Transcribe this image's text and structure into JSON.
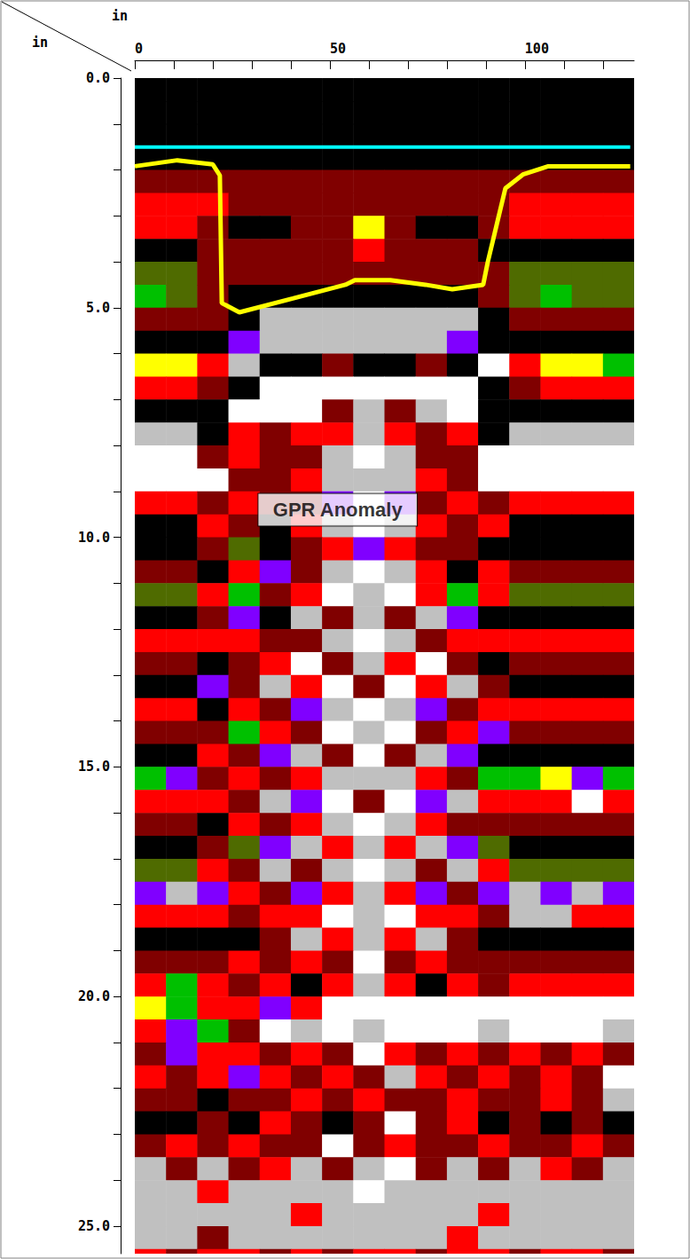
{
  "chart_data": {
    "type": "radargram",
    "x_label": "in",
    "y_label": "in",
    "xlim": [
      0,
      128
    ],
    "xticks": [
      0,
      50,
      100
    ],
    "ylim": [
      0,
      25.6
    ],
    "yticks": [
      {
        "value": 0,
        "label": "0.0"
      },
      {
        "value": 5,
        "label": "5.0"
      },
      {
        "value": 10,
        "label": "10.0"
      },
      {
        "value": 15,
        "label": "15.0"
      },
      {
        "value": 20,
        "label": "20.0"
      },
      {
        "value": 25,
        "label": "25.0"
      }
    ],
    "colors": [
      "#000000",
      "#800000",
      "#ff0000",
      "#ffff00",
      "#00c000",
      "#4f6b00",
      "#8000ff",
      "#ffffff",
      "#c0c0c0"
    ],
    "x_edges": [
      0,
      8,
      16,
      24,
      32,
      40,
      48,
      56,
      64,
      72,
      80,
      88,
      96,
      104,
      112,
      120,
      128
    ],
    "y_edges": [
      0,
      0.5,
      1,
      1.5,
      2,
      2.5,
      3,
      3.5,
      4,
      4.5,
      5,
      5.5,
      6,
      6.5,
      7,
      7.5,
      8,
      8.5,
      9,
      9.5,
      10,
      10.5,
      11,
      11.5,
      12,
      12.5,
      13,
      13.5,
      14,
      14.5,
      15,
      15.5,
      16,
      16.5,
      17,
      17.5,
      18,
      18.5,
      19,
      19.5,
      20,
      20.5,
      21,
      21.5,
      22,
      22.5,
      23,
      23.5,
      24,
      24.5,
      25,
      25.5,
      26
    ],
    "cells": [
      [
        0,
        0,
        0,
        0,
        0,
        0,
        0,
        0,
        0,
        0,
        0,
        0,
        0,
        0,
        0,
        0
      ],
      [
        0,
        0,
        0,
        0,
        0,
        0,
        0,
        0,
        0,
        0,
        0,
        0,
        0,
        0,
        0,
        0
      ],
      [
        0,
        0,
        0,
        0,
        0,
        0,
        0,
        0,
        0,
        0,
        0,
        0,
        0,
        0,
        0,
        0
      ],
      [
        0,
        0,
        0,
        0,
        0,
        0,
        0,
        0,
        0,
        0,
        0,
        0,
        0,
        0,
        0,
        0
      ],
      [
        1,
        1,
        1,
        1,
        1,
        1,
        1,
        1,
        1,
        1,
        1,
        1,
        1,
        1,
        1,
        1
      ],
      [
        2,
        2,
        2,
        1,
        1,
        1,
        1,
        1,
        1,
        1,
        1,
        1,
        2,
        2,
        2,
        2
      ],
      [
        2,
        2,
        1,
        0,
        0,
        1,
        1,
        3,
        1,
        0,
        0,
        1,
        2,
        2,
        2,
        2
      ],
      [
        0,
        0,
        1,
        1,
        1,
        1,
        1,
        2,
        1,
        1,
        1,
        0,
        0,
        0,
        0,
        0
      ],
      [
        5,
        5,
        1,
        1,
        1,
        1,
        1,
        1,
        1,
        1,
        1,
        1,
        5,
        5,
        5,
        5
      ],
      [
        4,
        5,
        1,
        0,
        0,
        0,
        0,
        0,
        0,
        0,
        0,
        1,
        5,
        4,
        5,
        5
      ],
      [
        1,
        1,
        1,
        0,
        8,
        8,
        8,
        8,
        8,
        8,
        8,
        0,
        1,
        1,
        1,
        1
      ],
      [
        0,
        0,
        0,
        6,
        8,
        8,
        8,
        8,
        8,
        8,
        6,
        0,
        0,
        0,
        0,
        0
      ],
      [
        3,
        3,
        2,
        8,
        0,
        0,
        1,
        0,
        0,
        1,
        0,
        7,
        2,
        3,
        3,
        4
      ],
      [
        2,
        2,
        1,
        0,
        7,
        7,
        7,
        7,
        7,
        7,
        7,
        0,
        1,
        2,
        2,
        2
      ],
      [
        0,
        0,
        0,
        7,
        7,
        7,
        1,
        8,
        1,
        8,
        7,
        0,
        0,
        0,
        0,
        0
      ],
      [
        8,
        8,
        0,
        2,
        1,
        2,
        2,
        8,
        2,
        1,
        2,
        0,
        8,
        8,
        8,
        8
      ],
      [
        7,
        7,
        1,
        2,
        1,
        1,
        8,
        7,
        8,
        1,
        1,
        7,
        7,
        7,
        7,
        7
      ],
      [
        7,
        7,
        7,
        1,
        1,
        2,
        8,
        8,
        8,
        2,
        1,
        7,
        7,
        7,
        7,
        7
      ],
      [
        2,
        2,
        1,
        2,
        1,
        1,
        6,
        7,
        6,
        1,
        2,
        1,
        2,
        2,
        2,
        2
      ],
      [
        0,
        0,
        2,
        1,
        0,
        2,
        8,
        7,
        8,
        2,
        1,
        2,
        0,
        0,
        0,
        0
      ],
      [
        0,
        0,
        1,
        5,
        0,
        1,
        2,
        6,
        2,
        1,
        1,
        0,
        0,
        0,
        0,
        0
      ],
      [
        1,
        1,
        0,
        2,
        6,
        1,
        8,
        7,
        8,
        2,
        0,
        2,
        1,
        1,
        1,
        1
      ],
      [
        5,
        5,
        2,
        4,
        1,
        2,
        7,
        8,
        7,
        2,
        4,
        2,
        5,
        5,
        5,
        5
      ],
      [
        0,
        0,
        1,
        6,
        0,
        8,
        1,
        8,
        1,
        8,
        6,
        0,
        0,
        0,
        0,
        0
      ],
      [
        2,
        2,
        2,
        2,
        1,
        1,
        8,
        7,
        8,
        1,
        2,
        2,
        2,
        2,
        2,
        2
      ],
      [
        1,
        1,
        0,
        1,
        2,
        7,
        1,
        8,
        2,
        7,
        1,
        0,
        1,
        1,
        1,
        1
      ],
      [
        0,
        0,
        6,
        1,
        8,
        2,
        7,
        1,
        7,
        2,
        8,
        1,
        0,
        0,
        0,
        0
      ],
      [
        2,
        2,
        0,
        2,
        1,
        6,
        8,
        7,
        8,
        6,
        1,
        2,
        2,
        2,
        2,
        2
      ],
      [
        1,
        1,
        1,
        4,
        2,
        1,
        7,
        8,
        7,
        1,
        2,
        6,
        1,
        1,
        1,
        1
      ],
      [
        0,
        0,
        2,
        1,
        6,
        8,
        1,
        7,
        1,
        8,
        6,
        0,
        0,
        0,
        0,
        0
      ],
      [
        4,
        6,
        1,
        2,
        1,
        2,
        8,
        8,
        8,
        2,
        1,
        4,
        4,
        3,
        6,
        4
      ],
      [
        2,
        2,
        2,
        1,
        8,
        6,
        7,
        1,
        7,
        6,
        8,
        2,
        2,
        2,
        7,
        2
      ],
      [
        1,
        1,
        0,
        2,
        1,
        2,
        8,
        7,
        8,
        2,
        1,
        1,
        1,
        1,
        1,
        1
      ],
      [
        0,
        0,
        1,
        5,
        6,
        8,
        2,
        8,
        2,
        8,
        6,
        5,
        0,
        0,
        0,
        0
      ],
      [
        5,
        5,
        2,
        1,
        8,
        1,
        8,
        7,
        8,
        1,
        8,
        2,
        5,
        5,
        5,
        5
      ],
      [
        6,
        8,
        6,
        2,
        1,
        6,
        2,
        8,
        2,
        6,
        1,
        6,
        8,
        6,
        8,
        6
      ],
      [
        2,
        2,
        2,
        1,
        2,
        2,
        7,
        8,
        7,
        2,
        2,
        1,
        8,
        8,
        2,
        2
      ],
      [
        0,
        0,
        0,
        0,
        1,
        8,
        2,
        8,
        2,
        8,
        1,
        0,
        0,
        0,
        0,
        0
      ],
      [
        1,
        1,
        1,
        2,
        1,
        2,
        1,
        7,
        1,
        2,
        1,
        1,
        1,
        1,
        1,
        1
      ],
      [
        2,
        4,
        2,
        1,
        2,
        0,
        2,
        8,
        2,
        0,
        2,
        1,
        2,
        2,
        2,
        2
      ],
      [
        3,
        4,
        2,
        2,
        6,
        2,
        7,
        7,
        7,
        7,
        7,
        7,
        7,
        7,
        7,
        7
      ],
      [
        2,
        6,
        4,
        1,
        7,
        8,
        7,
        8,
        7,
        7,
        7,
        8,
        7,
        7,
        7,
        8
      ],
      [
        1,
        6,
        2,
        2,
        1,
        2,
        1,
        7,
        2,
        1,
        2,
        1,
        2,
        1,
        2,
        1
      ],
      [
        2,
        1,
        2,
        6,
        2,
        1,
        2,
        1,
        8,
        2,
        1,
        2,
        1,
        2,
        1,
        7
      ],
      [
        1,
        1,
        0,
        1,
        1,
        2,
        1,
        2,
        1,
        1,
        2,
        1,
        1,
        2,
        1,
        8
      ],
      [
        0,
        0,
        1,
        0,
        2,
        1,
        0,
        1,
        7,
        1,
        2,
        0,
        1,
        0,
        1,
        0
      ],
      [
        1,
        2,
        1,
        2,
        1,
        1,
        7,
        1,
        2,
        1,
        1,
        2,
        1,
        1,
        2,
        1
      ],
      [
        8,
        1,
        8,
        1,
        2,
        8,
        1,
        8,
        7,
        1,
        8,
        1,
        8,
        2,
        1,
        8
      ],
      [
        8,
        8,
        2,
        8,
        8,
        8,
        8,
        7,
        8,
        8,
        8,
        8,
        8,
        8,
        8,
        8
      ],
      [
        8,
        8,
        8,
        8,
        8,
        2,
        8,
        8,
        8,
        8,
        8,
        2,
        8,
        8,
        8,
        8
      ],
      [
        8,
        8,
        1,
        8,
        8,
        8,
        8,
        8,
        8,
        8,
        2,
        8,
        8,
        8,
        8,
        8
      ],
      [
        2,
        1,
        2,
        2,
        1,
        2,
        1,
        2,
        2,
        1,
        2,
        2,
        1,
        2,
        2,
        1
      ]
    ],
    "lines": [
      {
        "color": "#00ffff",
        "x": [
          0,
          127
        ],
        "y": [
          1.5,
          1.5
        ]
      },
      {
        "color": "#ffff00",
        "x": [
          0,
          10.9,
          20,
          21.8,
          22.3,
          26.8,
          40.5,
          54,
          56.4,
          65.5,
          74.5,
          81.4,
          89.3,
          90.5,
          95,
          99.5,
          106,
          127
        ],
        "y": [
          1.92,
          1.79,
          1.88,
          2.12,
          4.9,
          5.1,
          4.8,
          4.5,
          4.4,
          4.4,
          4.5,
          4.6,
          4.5,
          4.0,
          2.4,
          2.1,
          1.92,
          1.92
        ]
      }
    ],
    "annotations": [
      {
        "text": "GPR Anomaly",
        "x": 52,
        "y": 9.4
      }
    ]
  }
}
